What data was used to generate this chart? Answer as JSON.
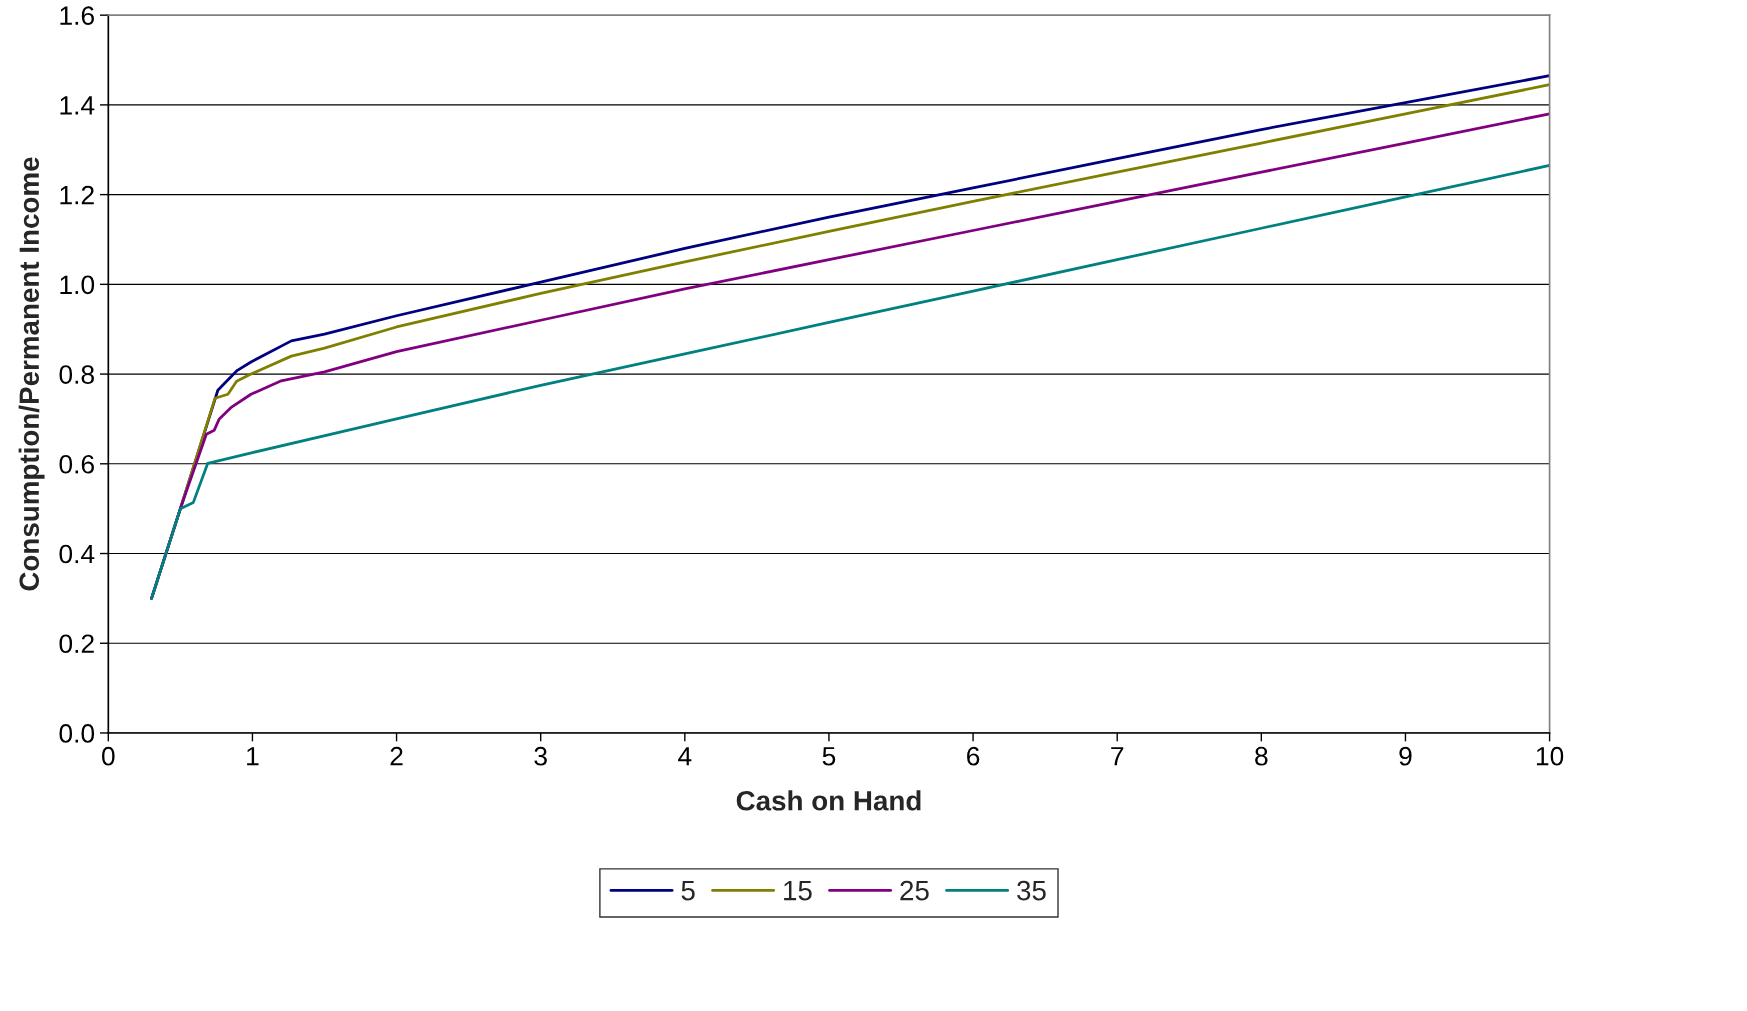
{
  "chart_data": {
    "type": "line",
    "xlabel": "Cash on Hand",
    "ylabel": "Consumption/Permanent Income",
    "xlim": [
      0,
      10
    ],
    "ylim": [
      0,
      1.6
    ],
    "xticks": [
      0,
      1,
      2,
      3,
      4,
      5,
      6,
      7,
      8,
      9,
      10
    ],
    "yticks": [
      {
        "value": 0,
        "label": "0.0"
      },
      {
        "value": 0.2,
        "label": "0.2"
      },
      {
        "value": 0.4,
        "label": "0.4"
      },
      {
        "value": 0.6,
        "label": "0.6"
      },
      {
        "value": 0.8,
        "label": "0.8"
      },
      {
        "value": 1.0,
        "label": "1.0"
      },
      {
        "value": 1.2,
        "label": "1.2"
      },
      {
        "value": 1.4,
        "label": "1.4"
      },
      {
        "value": 1.6,
        "label": "1.6"
      }
    ],
    "grid": "y",
    "legend": "bottom",
    "marker": "none",
    "line_style": "solid",
    "series": [
      {
        "name": "5",
        "color": "#000080",
        "x": [
          0.3,
          0.5,
          0.76,
          0.89,
          0.99,
          1.27,
          1.5,
          2,
          3,
          4,
          5,
          6,
          7,
          8,
          9,
          10
        ],
        "values": [
          0.3,
          0.5,
          0.764,
          0.807,
          0.827,
          0.874,
          0.889,
          0.93,
          1.005,
          1.08,
          1.15,
          1.215,
          1.28,
          1.345,
          1.405,
          1.465
        ]
      },
      {
        "name": "15",
        "color": "#808000",
        "x": [
          0.3,
          0.5,
          0.74,
          0.83,
          0.89,
          0.99,
          1.27,
          1.5,
          2,
          3,
          4,
          5,
          6,
          7,
          8,
          9,
          10
        ],
        "values": [
          0.3,
          0.5,
          0.746,
          0.755,
          0.784,
          0.8,
          0.84,
          0.858,
          0.905,
          0.98,
          1.05,
          1.118,
          1.185,
          1.25,
          1.315,
          1.38,
          1.445
        ]
      },
      {
        "name": "25",
        "color": "#800080",
        "x": [
          0.3,
          0.5,
          0.68,
          0.735,
          0.77,
          0.85,
          0.99,
          1.2,
          1.5,
          2,
          3,
          4,
          5,
          6,
          7,
          8,
          9,
          10
        ],
        "values": [
          0.3,
          0.5,
          0.666,
          0.675,
          0.7,
          0.725,
          0.755,
          0.785,
          0.805,
          0.85,
          0.92,
          0.99,
          1.055,
          1.12,
          1.185,
          1.25,
          1.315,
          1.38
        ]
      },
      {
        "name": "35",
        "color": "#008080",
        "x": [
          0.3,
          0.5,
          0.59,
          0.69,
          1,
          2,
          3,
          4,
          5,
          6,
          7,
          8,
          9,
          10
        ],
        "values": [
          0.3,
          0.5,
          0.514,
          0.601,
          0.625,
          0.7,
          0.775,
          0.845,
          0.915,
          0.985,
          1.055,
          1.125,
          1.195,
          1.265
        ]
      }
    ]
  }
}
